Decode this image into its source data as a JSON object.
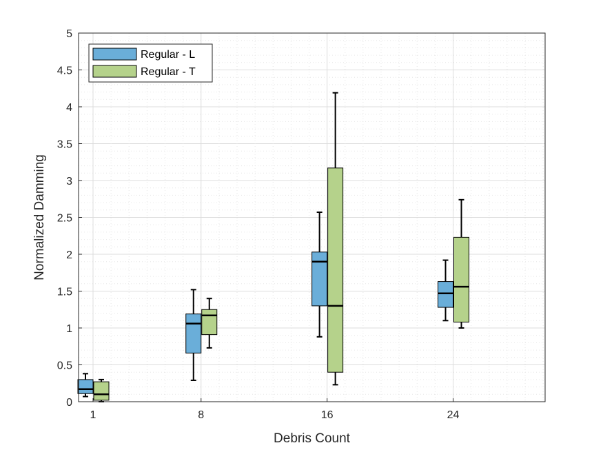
{
  "chart_data": {
    "type": "boxplot",
    "xlabel": "Debris Count",
    "ylabel": "Normalized Damming",
    "categories": [
      "1",
      "8",
      "16",
      "24"
    ],
    "ylim": [
      0,
      5
    ],
    "yticks": [
      "0",
      "0.5",
      "1",
      "1.5",
      "2",
      "2.5",
      "3",
      "3.5",
      "4",
      "4.5",
      "5"
    ],
    "grid": "major-and-minor",
    "legend_position": "top-left",
    "series": [
      {
        "name": "Regular - L",
        "color": "#6aaed9",
        "boxes": [
          {
            "whisker_low": 0.07,
            "q1": 0.11,
            "median": 0.17,
            "q3": 0.3,
            "whisker_high": 0.38
          },
          {
            "whisker_low": 0.29,
            "q1": 0.66,
            "median": 1.06,
            "q3": 1.19,
            "whisker_high": 1.52
          },
          {
            "whisker_low": 0.88,
            "q1": 1.3,
            "median": 1.9,
            "q3": 2.03,
            "whisker_high": 2.57
          },
          {
            "whisker_low": 1.1,
            "q1": 1.28,
            "median": 1.47,
            "q3": 1.63,
            "whisker_high": 1.92
          }
        ]
      },
      {
        "name": "Regular - T",
        "color": "#b5d28b",
        "boxes": [
          {
            "whisker_low": 0.0,
            "q1": 0.02,
            "median": 0.1,
            "q3": 0.27,
            "whisker_high": 0.3
          },
          {
            "whisker_low": 0.73,
            "q1": 0.91,
            "median": 1.17,
            "q3": 1.25,
            "whisker_high": 1.4
          },
          {
            "whisker_low": 0.23,
            "q1": 0.4,
            "median": 1.3,
            "q3": 3.17,
            "whisker_high": 4.19
          },
          {
            "whisker_low": 1.0,
            "q1": 1.08,
            "median": 1.56,
            "q3": 2.23,
            "whisker_high": 2.74
          }
        ]
      }
    ]
  }
}
